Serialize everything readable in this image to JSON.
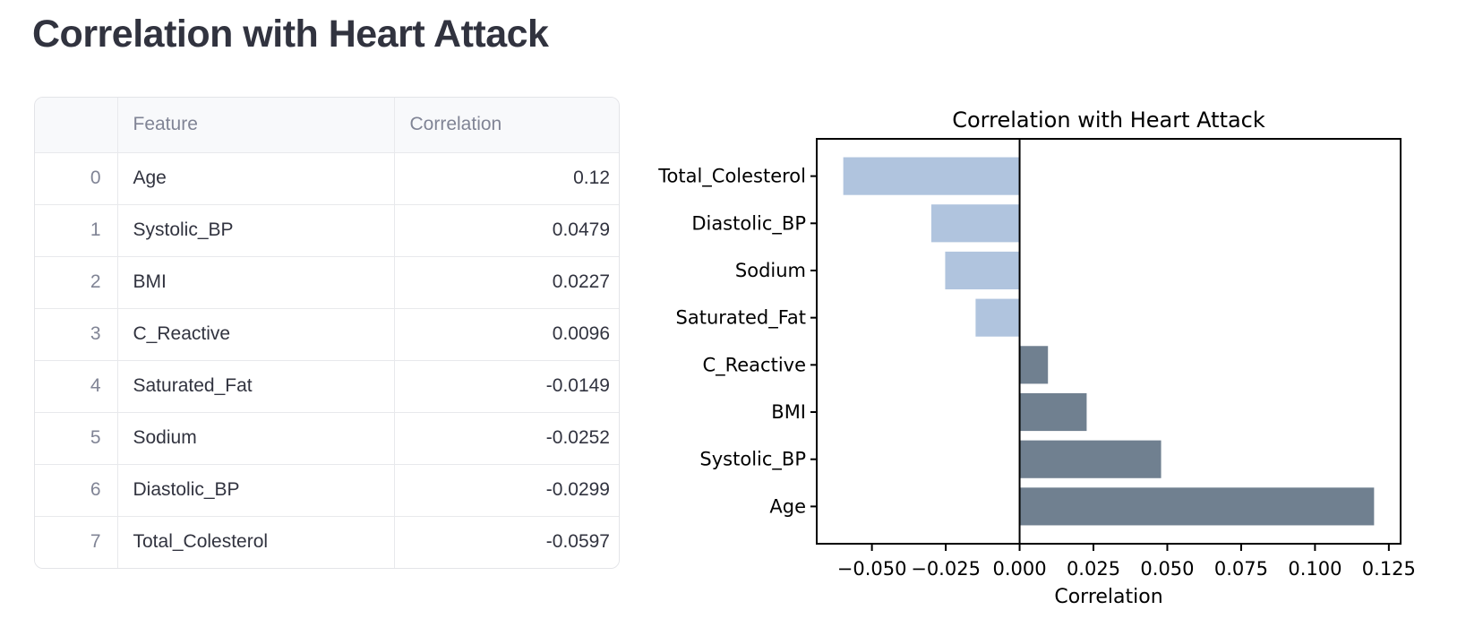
{
  "page": {
    "title": "Correlation with Heart Attack"
  },
  "table": {
    "columns": [
      "",
      "Feature",
      "Correlation"
    ],
    "rows": [
      {
        "index": "0",
        "feature": "Age",
        "correlation": "0.12"
      },
      {
        "index": "1",
        "feature": "Systolic_BP",
        "correlation": "0.0479"
      },
      {
        "index": "2",
        "feature": "BMI",
        "correlation": "0.0227"
      },
      {
        "index": "3",
        "feature": "C_Reactive",
        "correlation": "0.0096"
      },
      {
        "index": "4",
        "feature": "Saturated_Fat",
        "correlation": "-0.0149"
      },
      {
        "index": "5",
        "feature": "Sodium",
        "correlation": "-0.0252"
      },
      {
        "index": "6",
        "feature": "Diastolic_BP",
        "correlation": "-0.0299"
      },
      {
        "index": "7",
        "feature": "Total_Colesterol",
        "correlation": "-0.0597"
      }
    ]
  },
  "chart_data": {
    "type": "bar",
    "orientation": "horizontal",
    "title": "Correlation with Heart Attack",
    "xlabel": "Correlation",
    "ylabel": "",
    "categories": [
      "Total_Colesterol",
      "Diastolic_BP",
      "Sodium",
      "Saturated_Fat",
      "C_Reactive",
      "BMI",
      "Systolic_BP",
      "Age"
    ],
    "values": [
      -0.0597,
      -0.0299,
      -0.0252,
      -0.0149,
      0.0096,
      0.0227,
      0.0479,
      0.12
    ],
    "xticks": [
      -0.05,
      -0.025,
      0.0,
      0.025,
      0.05,
      0.075,
      0.1,
      0.125
    ],
    "xtick_labels": [
      "−0.050",
      "−0.025",
      "0.000",
      "0.025",
      "0.050",
      "0.075",
      "0.100",
      "0.125"
    ],
    "xlim": [
      -0.0687,
      0.129
    ],
    "grid": false,
    "legend": null,
    "zero_line": true,
    "colors": {
      "negative_bar": "#b0c4de",
      "positive_bar": "#708090",
      "spine": "#000000"
    }
  }
}
